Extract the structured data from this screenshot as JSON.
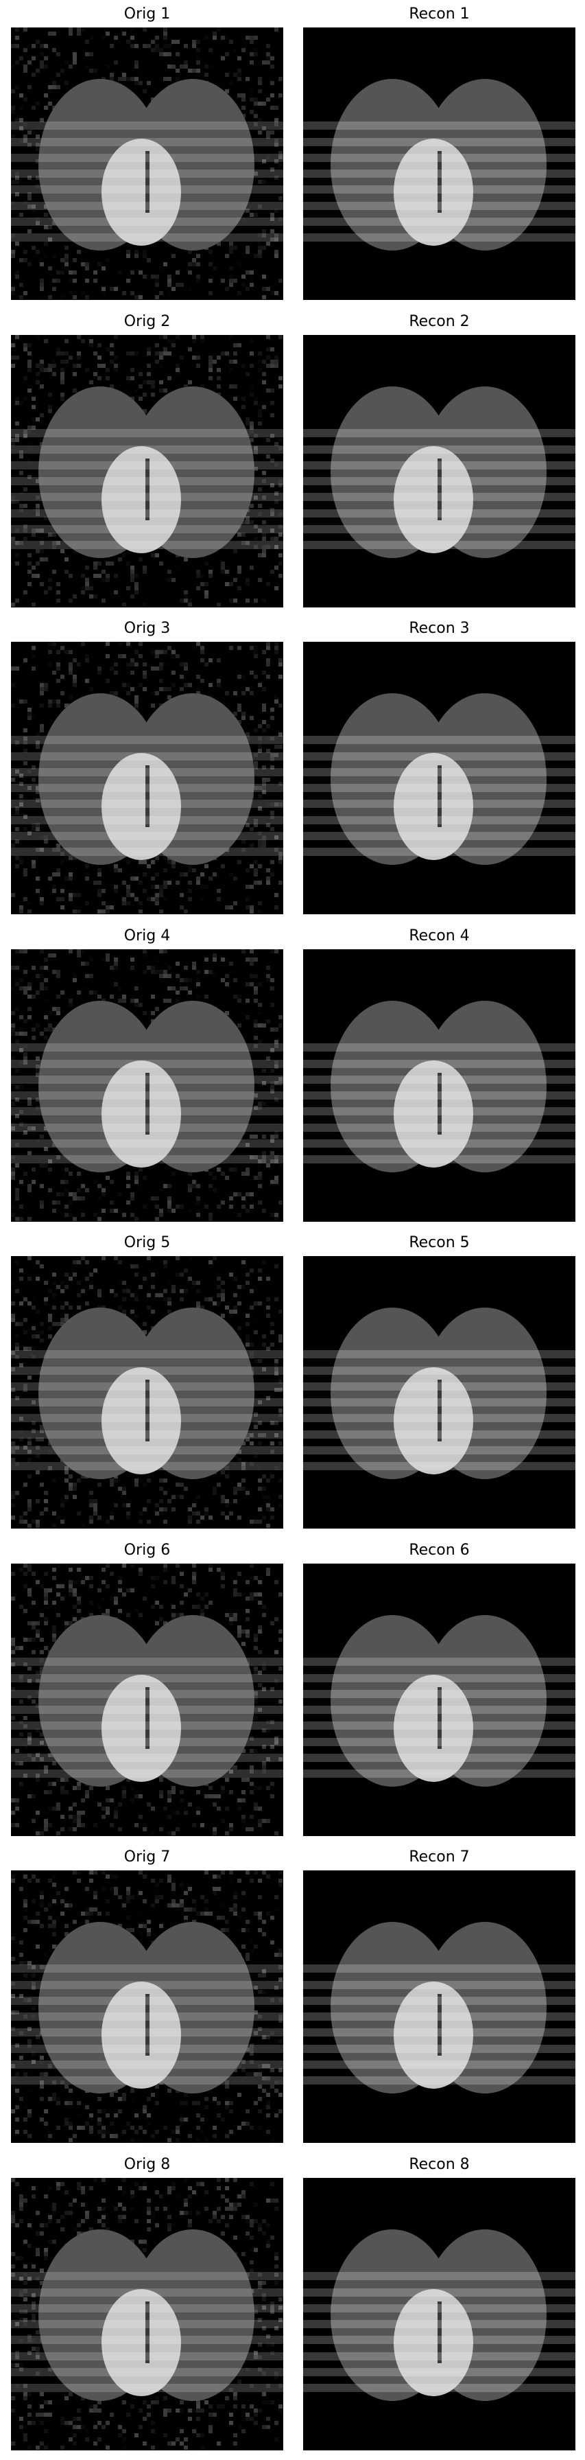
{
  "grid": {
    "rows": [
      {
        "orig_title": "Orig 1",
        "recon_title": "Recon 1"
      },
      {
        "orig_title": "Orig 2",
        "recon_title": "Recon 2"
      },
      {
        "orig_title": "Orig 3",
        "recon_title": "Recon 3"
      },
      {
        "orig_title": "Orig 4",
        "recon_title": "Recon 4"
      },
      {
        "orig_title": "Orig 5",
        "recon_title": "Recon 5"
      },
      {
        "orig_title": "Orig 6",
        "recon_title": "Recon 6"
      },
      {
        "orig_title": "Orig 7",
        "recon_title": "Recon 7"
      },
      {
        "orig_title": "Orig 8",
        "recon_title": "Recon 8"
      }
    ]
  },
  "colors": {
    "background": "#000000",
    "ellipse": "#555555",
    "inner_disk": "#c8c8c8",
    "stripe": "#ffffff"
  }
}
